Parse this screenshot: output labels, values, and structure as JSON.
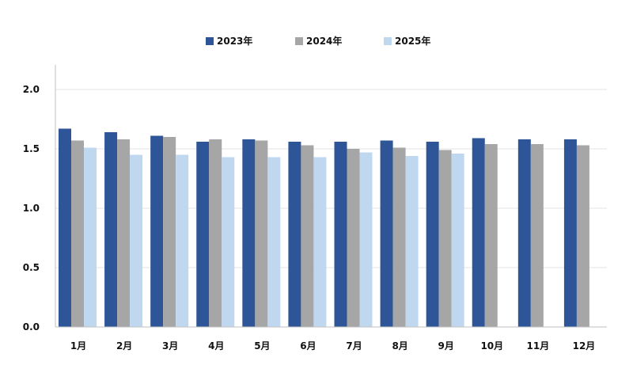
{
  "chart_data": {
    "type": "bar",
    "categories": [
      "1月",
      "2月",
      "3月",
      "4月",
      "5月",
      "6月",
      "7月",
      "8月",
      "9月",
      "10月",
      "11月",
      "12月"
    ],
    "series": [
      {
        "name": "2023年",
        "color": "#2e5597",
        "values": [
          1.67,
          1.64,
          1.61,
          1.56,
          1.58,
          1.56,
          1.56,
          1.57,
          1.56,
          1.59,
          1.58,
          1.58
        ]
      },
      {
        "name": "2024年",
        "color": "#a6a6a6",
        "values": [
          1.57,
          1.58,
          1.6,
          1.58,
          1.57,
          1.53,
          1.5,
          1.51,
          1.49,
          1.54,
          1.54,
          1.53
        ]
      },
      {
        "name": "2025年",
        "color": "#c0d8ef",
        "values": [
          1.51,
          1.45,
          1.45,
          1.43,
          1.43,
          1.43,
          1.47,
          1.44,
          1.46,
          null,
          null,
          null
        ]
      }
    ],
    "ylim": [
      0,
      2.0
    ],
    "yticks": [
      "0.0",
      "0.5",
      "1.0",
      "1.5",
      "2.0"
    ],
    "grid": true,
    "legend_position": "top-center"
  }
}
